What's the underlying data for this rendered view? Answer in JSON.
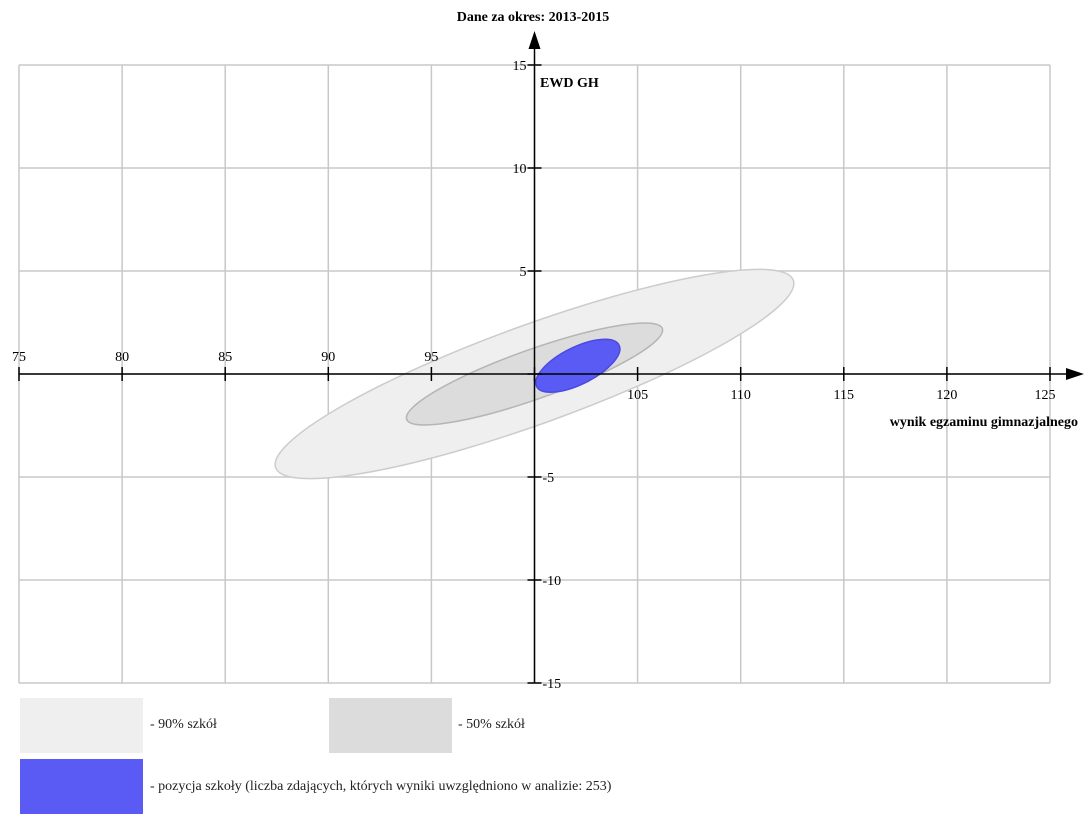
{
  "chart_data": {
    "type": "scatter",
    "title": "Dane za okres: 2013-2015",
    "xlabel": "wynik egzaminu gimnazjalnego",
    "ylabel": "EWD GH",
    "xlim": [
      75,
      125
    ],
    "ylim": [
      -15,
      15
    ],
    "x_ticks": [
      75,
      80,
      85,
      90,
      95,
      100,
      105,
      110,
      115,
      120,
      125
    ],
    "x_tick_labels": [
      "75",
      "80",
      "85",
      "90",
      "95",
      "",
      "105",
      "110",
      "115",
      "120",
      "125"
    ],
    "y_ticks": [
      -15,
      -10,
      -5,
      0,
      5,
      10,
      15
    ],
    "y_tick_labels": [
      "-15",
      "-10",
      "-5",
      "",
      "5",
      "10",
      "15"
    ],
    "grid": true,
    "regions": [
      {
        "name": "- 90% szkół",
        "color": "#efefef",
        "stroke": "#cccccc",
        "center": [
          100,
          0
        ],
        "endpoint_low": [
          87.6,
          -4.6
        ],
        "endpoint_high": [
          112.7,
          4.5
        ],
        "half_width": 2.4
      },
      {
        "name": "- 50% szkół",
        "color": "#dcdcdc",
        "stroke": "#b5b5b5",
        "center": [
          100,
          0
        ],
        "endpoint_low": [
          93.8,
          -2.2
        ],
        "endpoint_high": [
          106.2,
          2.2
        ],
        "half_width": 1.2
      },
      {
        "name": "- pozycja szkoły (liczba zdających, których wyniki uwzględniono w analizie: 253)",
        "color": "#5a5af5",
        "stroke": "#4a4ae0",
        "center": [
          102.1,
          0.4
        ],
        "endpoint_low": [
          100.0,
          -0.6
        ],
        "endpoint_high": [
          104.0,
          1.4
        ],
        "half_width": 0.9
      }
    ]
  }
}
